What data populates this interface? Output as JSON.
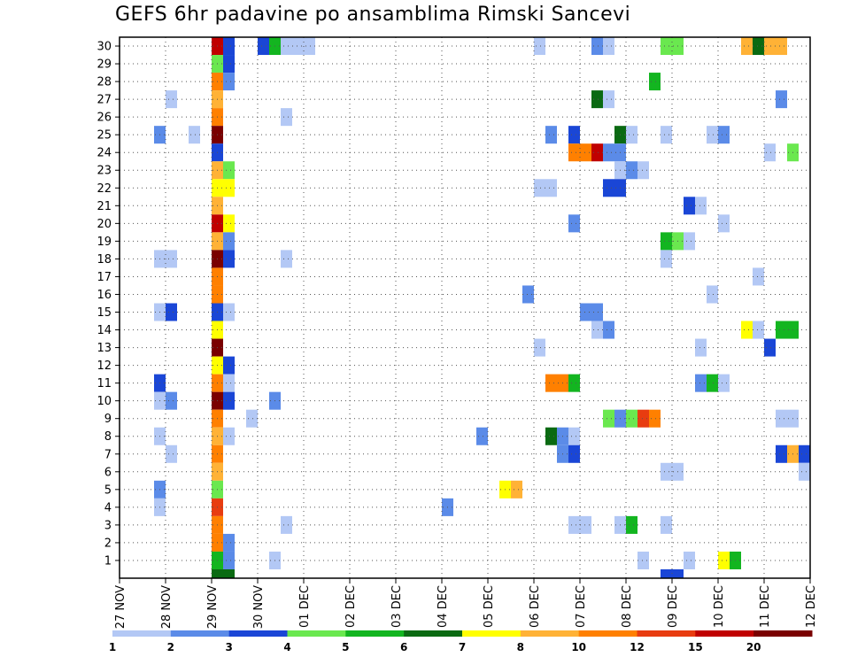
{
  "chart_data": {
    "type": "heatmap",
    "title": "GEFS 6hr padavine po ansamblima Rimski Sancevi",
    "x_ticks": [
      "27 NOV",
      "28 NOV",
      "29 NOV",
      "30 NOV",
      "01 DEC",
      "02 DEC",
      "03 DEC",
      "04 DEC",
      "05 DEC",
      "06 DEC",
      "07 DEC",
      "08 DEC",
      "09 DEC",
      "10 DEC",
      "11 DEC",
      "12 DEC"
    ],
    "y_ticks": [
      1,
      2,
      3,
      4,
      5,
      6,
      7,
      8,
      9,
      10,
      11,
      12,
      13,
      14,
      15,
      16,
      17,
      18,
      19,
      20,
      21,
      22,
      23,
      24,
      25,
      26,
      27,
      28,
      29,
      30
    ],
    "ylim": [
      0,
      30
    ],
    "time_step_hours": 6,
    "grid": true,
    "colorbar": {
      "position": "bottom",
      "labels": [
        "1",
        "2",
        "3",
        "4",
        "5",
        "6",
        "7",
        "8",
        "10",
        "12",
        "15",
        "20"
      ],
      "bins": [
        {
          "color": "#b3c8f5"
        },
        {
          "color": "#5b8be8"
        },
        {
          "color": "#1a46d6"
        },
        {
          "color": "#6ae84f"
        },
        {
          "color": "#13b520"
        },
        {
          "color": "#0a6a12"
        },
        {
          "color": "#ffff00"
        },
        {
          "color": "#ffb236"
        },
        {
          "color": "#ff8000"
        },
        {
          "color": "#e83c10"
        },
        {
          "color": "#c00000"
        },
        {
          "color": "#7a0000"
        }
      ]
    },
    "cells_note": "each cell = [member (y), time step index from 27 NOV 00z in 6h steps, color bin index 0-11]",
    "cells": [
      [
        30,
        8,
        10
      ],
      [
        30,
        9,
        2
      ],
      [
        30,
        12,
        2
      ],
      [
        30,
        13,
        4
      ],
      [
        30,
        14,
        0
      ],
      [
        30,
        15,
        0
      ],
      [
        30,
        16,
        0
      ],
      [
        30,
        36,
        0
      ],
      [
        30,
        41,
        1
      ],
      [
        30,
        42,
        0
      ],
      [
        30,
        47,
        3
      ],
      [
        30,
        48,
        3
      ],
      [
        30,
        54,
        7
      ],
      [
        30,
        55,
        5
      ],
      [
        30,
        56,
        7
      ],
      [
        30,
        57,
        7
      ],
      [
        29,
        8,
        3
      ],
      [
        29,
        9,
        2
      ],
      [
        28,
        8,
        8
      ],
      [
        28,
        9,
        1
      ],
      [
        28,
        46,
        4
      ],
      [
        27,
        4,
        0
      ],
      [
        27,
        8,
        7
      ],
      [
        27,
        41,
        5
      ],
      [
        27,
        42,
        0
      ],
      [
        27,
        57,
        1
      ],
      [
        26,
        8,
        8
      ],
      [
        26,
        14,
        0
      ],
      [
        25,
        3,
        1
      ],
      [
        25,
        6,
        0
      ],
      [
        25,
        8,
        11
      ],
      [
        25,
        37,
        1
      ],
      [
        25,
        39,
        2
      ],
      [
        25,
        43,
        5
      ],
      [
        25,
        44,
        0
      ],
      [
        25,
        47,
        0
      ],
      [
        25,
        51,
        0
      ],
      [
        25,
        52,
        1
      ],
      [
        24,
        8,
        2
      ],
      [
        24,
        39,
        8
      ],
      [
        24,
        40,
        8
      ],
      [
        24,
        41,
        10
      ],
      [
        24,
        42,
        1
      ],
      [
        24,
        43,
        1
      ],
      [
        24,
        56,
        0
      ],
      [
        24,
        58,
        3
      ],
      [
        23,
        8,
        7
      ],
      [
        23,
        9,
        3
      ],
      [
        23,
        43,
        0
      ],
      [
        23,
        44,
        1
      ],
      [
        23,
        45,
        0
      ],
      [
        22,
        8,
        6
      ],
      [
        22,
        9,
        6
      ],
      [
        22,
        36,
        0
      ],
      [
        22,
        37,
        0
      ],
      [
        22,
        42,
        2
      ],
      [
        22,
        43,
        2
      ],
      [
        21,
        8,
        7
      ],
      [
        21,
        49,
        2
      ],
      [
        21,
        50,
        0
      ],
      [
        20,
        8,
        10
      ],
      [
        20,
        9,
        6
      ],
      [
        20,
        39,
        1
      ],
      [
        20,
        52,
        0
      ],
      [
        19,
        8,
        7
      ],
      [
        19,
        9,
        1
      ],
      [
        19,
        47,
        4
      ],
      [
        19,
        48,
        3
      ],
      [
        19,
        49,
        0
      ],
      [
        18,
        3,
        0
      ],
      [
        18,
        4,
        0
      ],
      [
        18,
        8,
        11
      ],
      [
        18,
        9,
        2
      ],
      [
        18,
        14,
        0
      ],
      [
        18,
        47,
        0
      ],
      [
        17,
        8,
        8
      ],
      [
        17,
        55,
        0
      ],
      [
        16,
        8,
        8
      ],
      [
        16,
        35,
        1
      ],
      [
        16,
        51,
        0
      ],
      [
        15,
        3,
        0
      ],
      [
        15,
        4,
        2
      ],
      [
        15,
        8,
        2
      ],
      [
        15,
        9,
        0
      ],
      [
        15,
        40,
        1
      ],
      [
        15,
        41,
        1
      ],
      [
        14,
        8,
        6
      ],
      [
        14,
        41,
        0
      ],
      [
        14,
        42,
        1
      ],
      [
        14,
        54,
        6
      ],
      [
        14,
        55,
        0
      ],
      [
        14,
        57,
        4
      ],
      [
        14,
        58,
        4
      ],
      [
        13,
        8,
        11
      ],
      [
        13,
        36,
        0
      ],
      [
        13,
        50,
        0
      ],
      [
        13,
        56,
        2
      ],
      [
        12,
        8,
        6
      ],
      [
        12,
        9,
        2
      ],
      [
        11,
        3,
        2
      ],
      [
        11,
        8,
        8
      ],
      [
        11,
        9,
        0
      ],
      [
        11,
        37,
        8
      ],
      [
        11,
        38,
        8
      ],
      [
        11,
        39,
        4
      ],
      [
        11,
        50,
        1
      ],
      [
        11,
        51,
        4
      ],
      [
        11,
        52,
        0
      ],
      [
        10,
        3,
        0
      ],
      [
        10,
        4,
        1
      ],
      [
        10,
        8,
        11
      ],
      [
        10,
        9,
        2
      ],
      [
        10,
        13,
        1
      ],
      [
        9,
        8,
        8
      ],
      [
        9,
        11,
        0
      ],
      [
        9,
        42,
        3
      ],
      [
        9,
        43,
        1
      ],
      [
        9,
        44,
        3
      ],
      [
        9,
        45,
        9
      ],
      [
        9,
        46,
        8
      ],
      [
        9,
        57,
        0
      ],
      [
        9,
        58,
        0
      ],
      [
        8,
        3,
        0
      ],
      [
        8,
        8,
        7
      ],
      [
        8,
        9,
        0
      ],
      [
        8,
        31,
        1
      ],
      [
        8,
        37,
        5
      ],
      [
        8,
        38,
        1
      ],
      [
        8,
        39,
        0
      ],
      [
        7,
        4,
        0
      ],
      [
        7,
        8,
        8
      ],
      [
        7,
        38,
        1
      ],
      [
        7,
        39,
        2
      ],
      [
        7,
        57,
        2
      ],
      [
        7,
        58,
        7
      ],
      [
        7,
        59,
        2
      ],
      [
        6,
        8,
        7
      ],
      [
        6,
        47,
        0
      ],
      [
        6,
        48,
        0
      ],
      [
        6,
        59,
        0
      ],
      [
        5,
        3,
        1
      ],
      [
        5,
        8,
        3
      ],
      [
        5,
        33,
        6
      ],
      [
        5,
        34,
        7
      ],
      [
        4,
        3,
        0
      ],
      [
        4,
        8,
        9
      ],
      [
        4,
        28,
        1
      ],
      [
        3,
        8,
        8
      ],
      [
        3,
        14,
        0
      ],
      [
        3,
        39,
        0
      ],
      [
        3,
        40,
        0
      ],
      [
        3,
        43,
        0
      ],
      [
        3,
        44,
        4
      ],
      [
        3,
        47,
        0
      ],
      [
        2,
        8,
        8
      ],
      [
        2,
        9,
        1
      ],
      [
        1,
        8,
        4
      ],
      [
        1,
        9,
        1
      ],
      [
        1,
        13,
        0
      ],
      [
        1,
        45,
        0
      ],
      [
        1,
        49,
        0
      ],
      [
        1,
        52,
        6
      ],
      [
        1,
        53,
        4
      ],
      [
        0,
        8,
        5
      ],
      [
        0,
        9,
        5
      ],
      [
        0,
        47,
        2
      ],
      [
        0,
        48,
        2
      ]
    ]
  }
}
